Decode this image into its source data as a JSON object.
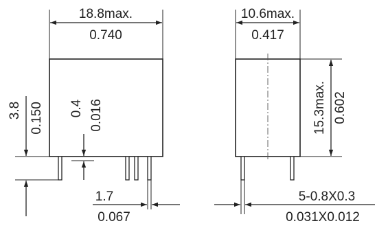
{
  "front_view": {
    "width_mm": "18.8max.",
    "width_in": "0.740",
    "pin_length_mm": "3.8",
    "pin_length_in": "0.150",
    "pin_step_mm": "0.4",
    "pin_step_in": "0.016",
    "pin_spacing_mm": "1.7",
    "pin_spacing_in": "0.067"
  },
  "side_view": {
    "width_mm": "10.6max.",
    "width_in": "0.417",
    "height_mm": "15.3max.",
    "height_in": "0.602",
    "pin_size_mm": "5-0.8X0.3",
    "pin_size_in": "0.031X0.012"
  }
}
